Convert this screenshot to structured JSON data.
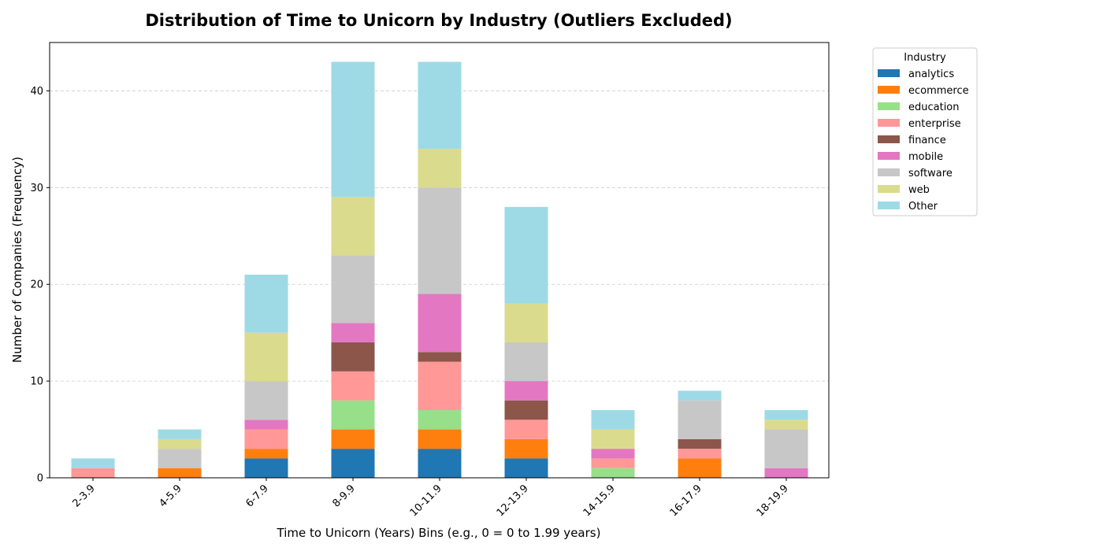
{
  "chart_data": {
    "type": "bar",
    "stacked": true,
    "title": "Distribution of Time to Unicorn by Industry (Outliers Excluded)",
    "xlabel": "Time to Unicorn (Years) Bins (e.g., 0 = 0 to 1.99 years)",
    "ylabel": "Number of Companies (Frequency)",
    "ylim": [
      0,
      45
    ],
    "yticks": [
      0,
      10,
      20,
      30,
      40
    ],
    "grid": "y-dashed",
    "legend_title": "Industry",
    "legend_position": "outside-right-top",
    "categories": [
      "2-3.9",
      "4-5.9",
      "6-7.9",
      "8-9.9",
      "10-11.9",
      "12-13.9",
      "14-15.9",
      "16-17.9",
      "18-19.9"
    ],
    "series": [
      {
        "name": "analytics",
        "color": "#1f77b4",
        "values": [
          0,
          0,
          2,
          3,
          3,
          2,
          0,
          0,
          0
        ]
      },
      {
        "name": "ecommerce",
        "color": "#ff7f0e",
        "values": [
          0,
          1,
          1,
          2,
          2,
          2,
          0,
          2,
          0
        ]
      },
      {
        "name": "education",
        "color": "#98df8a",
        "values": [
          0,
          0,
          0,
          3,
          2,
          0,
          1,
          0,
          0
        ]
      },
      {
        "name": "enterprise",
        "color": "#ff9896",
        "values": [
          1,
          0,
          2,
          3,
          5,
          2,
          1,
          1,
          0
        ]
      },
      {
        "name": "finance",
        "color": "#8c564b",
        "values": [
          0,
          0,
          0,
          3,
          1,
          2,
          0,
          1,
          0
        ]
      },
      {
        "name": "mobile",
        "color": "#e377c2",
        "values": [
          0,
          0,
          1,
          2,
          6,
          2,
          1,
          0,
          1
        ]
      },
      {
        "name": "software",
        "color": "#c7c7c7",
        "values": [
          0,
          2,
          4,
          7,
          11,
          4,
          0,
          4,
          4
        ]
      },
      {
        "name": "web",
        "color": "#dbdb8d",
        "values": [
          0,
          1,
          5,
          6,
          4,
          4,
          2,
          0,
          1
        ]
      },
      {
        "name": "Other",
        "color": "#9edae5",
        "values": [
          1,
          1,
          6,
          14,
          9,
          10,
          2,
          1,
          1
        ]
      }
    ]
  }
}
